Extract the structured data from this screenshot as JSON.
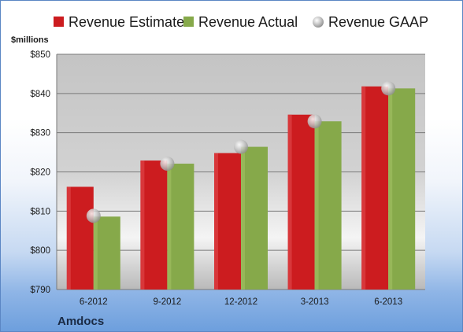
{
  "chart_data": {
    "type": "bar",
    "title": "",
    "ylabel": "$millions",
    "company": "Amdocs",
    "categories": [
      "6-2012",
      "9-2012",
      "12-2012",
      "3-2013",
      "6-2013"
    ],
    "series": [
      {
        "name": "Revenue Estimate",
        "kind": "bar",
        "color": "#cc1c1f",
        "values": [
          816.2,
          822.9,
          824.8,
          834.6,
          841.8
        ]
      },
      {
        "name": "Revenue Actual",
        "kind": "bar",
        "color": "#86a94a",
        "values": [
          808.6,
          822.1,
          826.4,
          832.9,
          841.3
        ]
      },
      {
        "name": "Revenue GAAP",
        "kind": "marker",
        "color": "#b8b8b8",
        "values": [
          808.8,
          822.1,
          826.4,
          832.9,
          841.3
        ]
      }
    ],
    "ylim": [
      790,
      850
    ],
    "yticks": [
      790,
      800,
      810,
      820,
      830,
      840,
      850
    ],
    "ytick_labels": [
      "$790",
      "$800",
      "$810",
      "$820",
      "$830",
      "$840",
      "$850"
    ],
    "grid": true,
    "legend": "top"
  }
}
